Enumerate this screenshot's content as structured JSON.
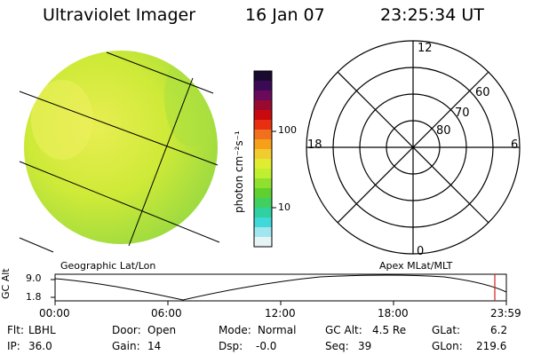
{
  "header": {
    "instrument": "Ultraviolet Imager",
    "date": "16 Jan 07",
    "time": "23:25:34 UT"
  },
  "colorbar": {
    "unit_label": "photon cm⁻²s⁻¹",
    "tick_100": "100",
    "tick_10": "10",
    "colors": [
      "#1a0a30",
      "#3a0a55",
      "#6a0a5a",
      "#9a0a30",
      "#c80a10",
      "#e83010",
      "#f07020",
      "#f5a018",
      "#f0cc30",
      "#e0ec30",
      "#c0ee30",
      "#90e030",
      "#60d030",
      "#40d060",
      "#30d0a0",
      "#40d8d8",
      "#a0e6ee",
      "#e6f4f6"
    ]
  },
  "left_panel": {
    "title": "Geographic Lat/Lon",
    "disk_color": "#d2ec34",
    "disk_edge_color": "#9ed83a"
  },
  "right_panel": {
    "title": "Apex MLat/MLT",
    "mlt_top": "12",
    "mlt_bottom": "0",
    "mlt_left": "18",
    "mlt_right": "6",
    "lat_60": "60",
    "lat_70": "70",
    "lat_80": "80"
  },
  "altitude_strip": {
    "axis_label": "GC Alt",
    "tick_high": "9.0",
    "tick_low": "1.8",
    "time_ticks": [
      "00:00",
      "06:00",
      "12:00",
      "18:00",
      "23:59"
    ],
    "cursor_color": "#d02020"
  },
  "footer": {
    "flt_label": "Flt:",
    "flt_value": "LBHL",
    "ip_label": "IP:",
    "ip_value": "36.0",
    "door_label": "Door:",
    "door_value": "Open",
    "gain_label": "Gain:",
    "gain_value": "14",
    "mode_label": "Mode:",
    "mode_value": "Normal",
    "dsp_label": "Dsp:",
    "dsp_value": "-0.0",
    "gcalt_label": "GC Alt:",
    "gcalt_value": "4.5 Re",
    "seq_label": "Seq:",
    "seq_value": "39",
    "glat_label": "GLat:",
    "glat_value": "6.2",
    "glon_label": "GLon:",
    "glon_value": "219.6"
  }
}
